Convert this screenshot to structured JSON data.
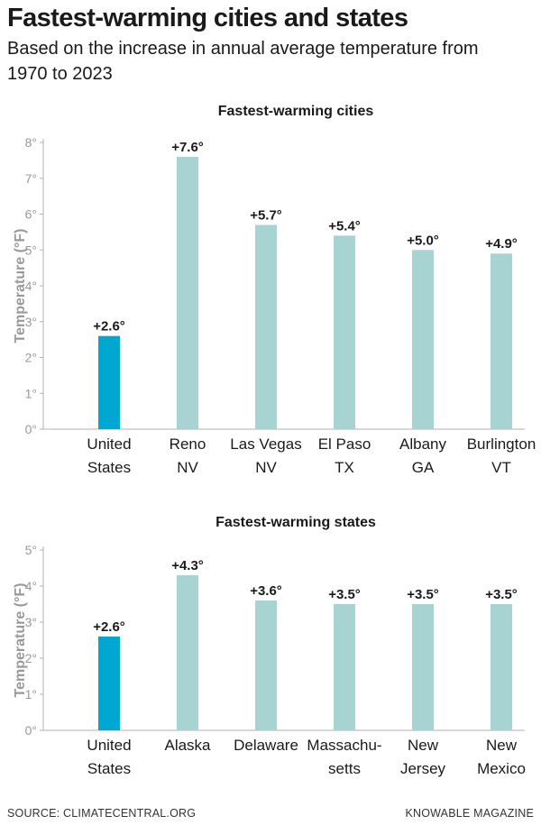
{
  "header": {
    "title": "Fastest-warming cities and states",
    "subtitle": "Based on the increase in annual average temperature from 1970 to 2023"
  },
  "footer": {
    "source": "SOURCE: CLIMATECENTRAL.ORG",
    "credit": "KNOWABLE MAGAZINE"
  },
  "colors": {
    "highlight": "#00a7d0",
    "bar": "#a8d3d3",
    "axis": "#b0b0b0",
    "tick_label": "#999999"
  },
  "chart_data": [
    {
      "type": "bar",
      "title": "Fastest-warming cities",
      "ylabel": "Temperature (°F)",
      "xlabel": "",
      "ylim": [
        0,
        8
      ],
      "yticks": [
        "0°",
        "1°",
        "2°",
        "3°",
        "4°",
        "5°",
        "6°",
        "7°",
        "8°"
      ],
      "grid": false,
      "categories": [
        [
          "United",
          "States"
        ],
        [
          "Reno",
          "NV"
        ],
        [
          "Las Vegas",
          "NV"
        ],
        [
          "El Paso",
          "TX"
        ],
        [
          "Albany",
          "GA"
        ],
        [
          "Burlington",
          "VT"
        ]
      ],
      "values": [
        2.6,
        7.6,
        5.7,
        5.4,
        5.0,
        4.9
      ],
      "value_labels": [
        "+2.6°",
        "+7.6°",
        "+5.7°",
        "+5.4°",
        "+5.0°",
        "+4.9°"
      ],
      "highlight_index": 0
    },
    {
      "type": "bar",
      "title": "Fastest-warming states",
      "ylabel": "Temperature (°F)",
      "xlabel": "",
      "ylim": [
        0,
        5
      ],
      "yticks": [
        "0°",
        "1°",
        "2°",
        "3°",
        "4°",
        "5°"
      ],
      "grid": false,
      "categories": [
        [
          "United",
          "States"
        ],
        [
          "Alaska"
        ],
        [
          "Delaware"
        ],
        [
          "Massachu-",
          "setts"
        ],
        [
          "New",
          "Jersey"
        ],
        [
          "New",
          "Mexico"
        ]
      ],
      "values": [
        2.6,
        4.3,
        3.6,
        3.5,
        3.5,
        3.5
      ],
      "value_labels": [
        "+2.6°",
        "+4.3°",
        "+3.6°",
        "+3.5°",
        "+3.5°",
        "+3.5°"
      ],
      "highlight_index": 0
    }
  ]
}
